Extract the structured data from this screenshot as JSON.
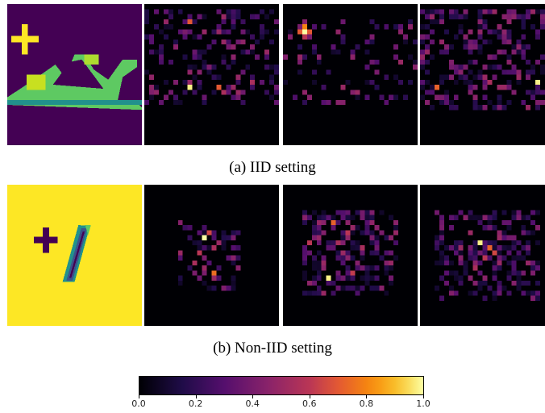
{
  "captions": {
    "iid": "(a) IID setting",
    "noniid": "(b) Non-IID setting"
  },
  "colorbar": {
    "colormap": "inferno",
    "range": [
      0.0,
      1.0
    ],
    "ticks": [
      "0.0",
      "0.2",
      "0.4",
      "0.6",
      "0.8",
      "1.0"
    ]
  },
  "rows": [
    {
      "setting": "IID",
      "input_image": "trigger-stamped sandal",
      "trigger_symbol": "+",
      "panels": [
        "input-image",
        "heatmap",
        "heatmap",
        "heatmap"
      ]
    },
    {
      "setting": "Non-IID",
      "input_image": "trigger-stamped digit",
      "trigger_symbol": "+",
      "panels": [
        "input-image",
        "heatmap",
        "heatmap",
        "heatmap"
      ]
    }
  ],
  "colors": {
    "viridis_dark": "#440154",
    "viridis_yellow": "#fde725",
    "viridis_green": "#5ec962",
    "viridis_teal": "#21918c",
    "inferno_dark": "#000004"
  }
}
